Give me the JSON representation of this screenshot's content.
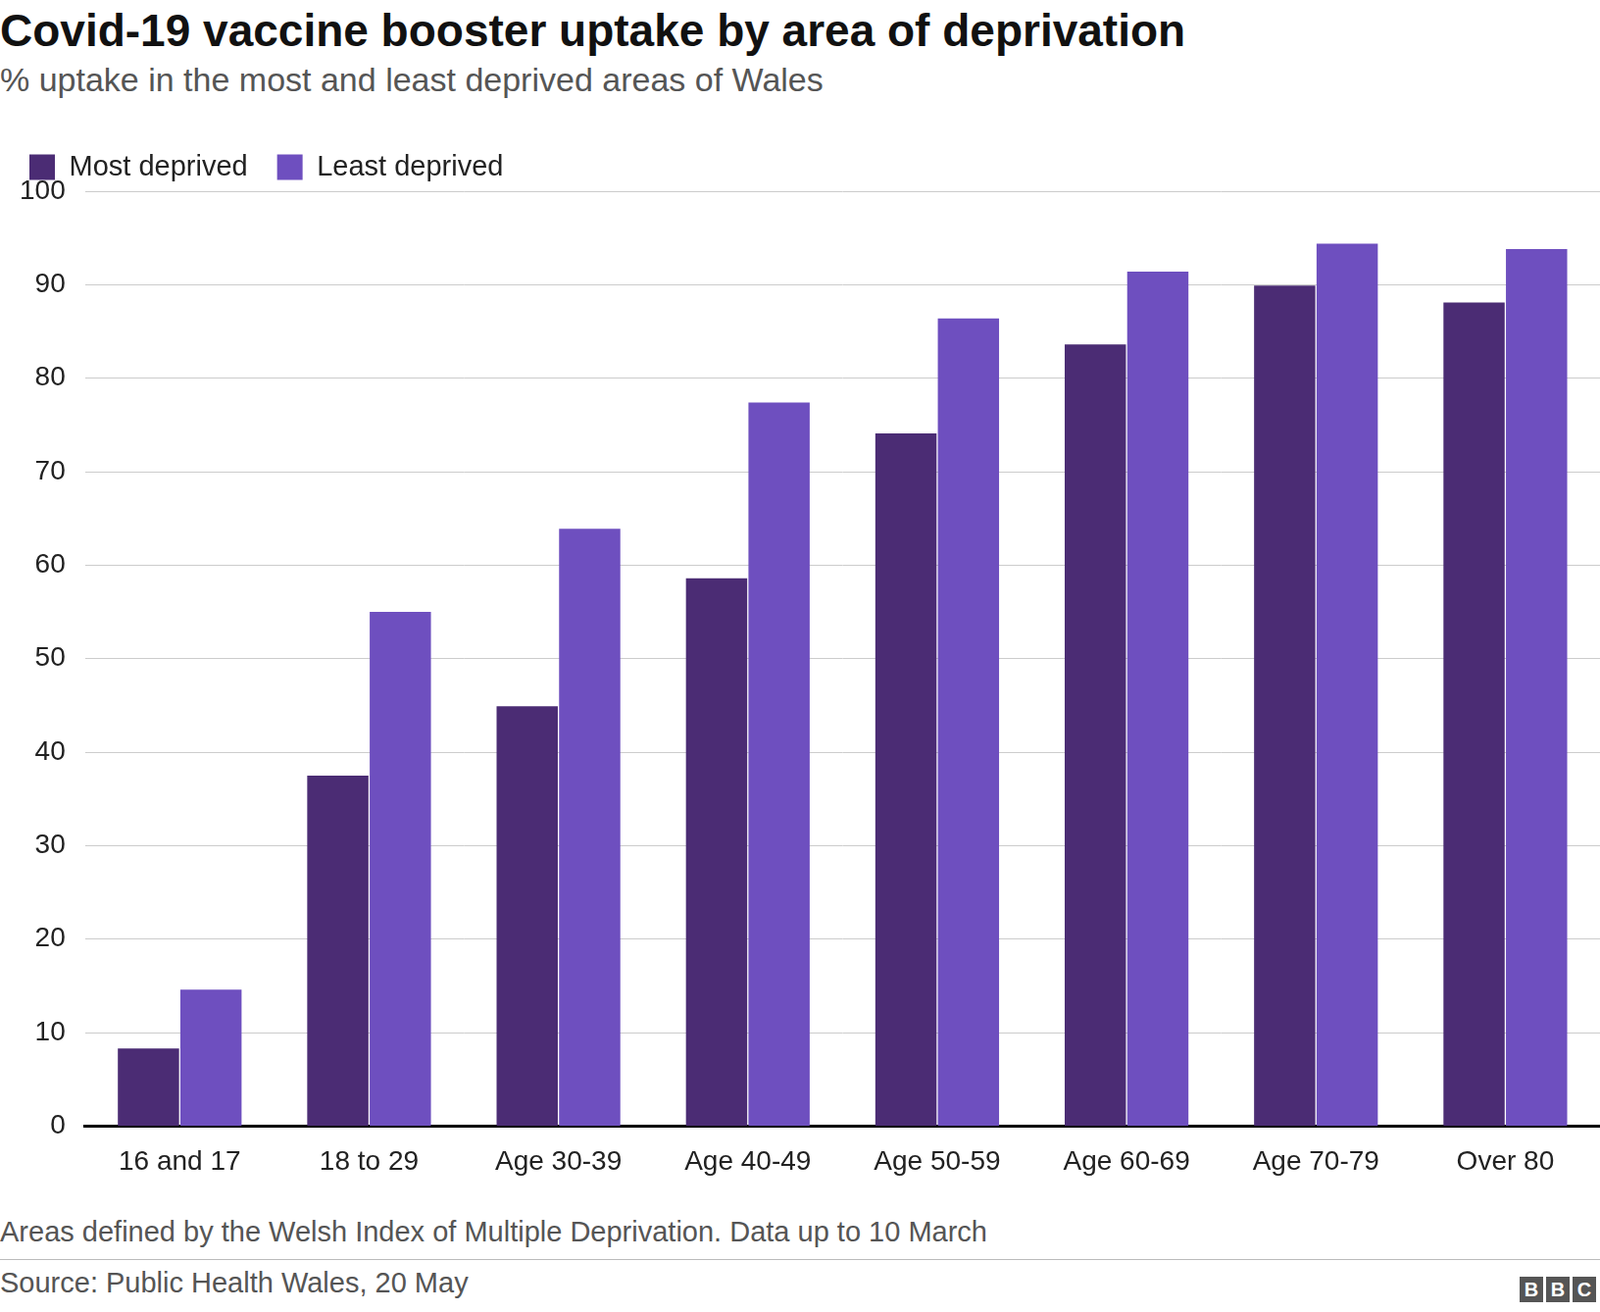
{
  "chart_data": {
    "type": "bar",
    "title": "Covid-19 vaccine booster uptake by area of deprivation",
    "subtitle": "% uptake in the most and least deprived areas of Wales",
    "footnote": "Areas defined by the Welsh Index of Multiple Deprivation. Data up to 10 March",
    "source": "Source: Public Health Wales, 20 May",
    "logo": "BBC",
    "categories": [
      "16 and 17",
      "18 to 29",
      "Age 30-39",
      "Age 40-49",
      "Age 50-59",
      "Age 60-69",
      "Age 70-79",
      "Over 80"
    ],
    "series": [
      {
        "name": "Most deprived",
        "color": "#4b2c74",
        "values": [
          8.3,
          37.5,
          44.9,
          58.6,
          74.1,
          83.6,
          89.9,
          88.1
        ]
      },
      {
        "name": "Least deprived",
        "color": "#6e4fbf",
        "values": [
          14.6,
          55.0,
          63.9,
          77.4,
          86.4,
          91.4,
          94.4,
          93.8
        ]
      }
    ],
    "ylim": [
      0,
      100
    ],
    "yticks": [
      0,
      10,
      20,
      30,
      40,
      50,
      60,
      70,
      80,
      90,
      100
    ],
    "grid": true,
    "legend": "top-left"
  }
}
